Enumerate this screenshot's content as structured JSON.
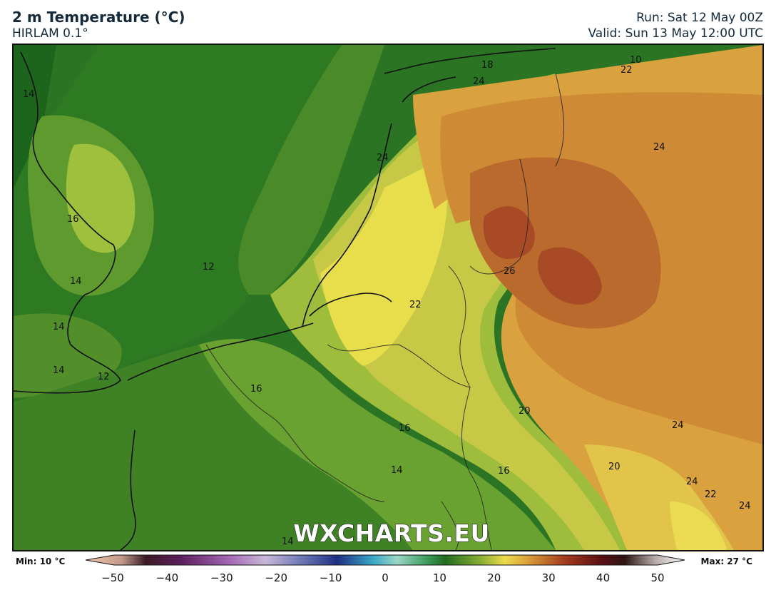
{
  "header": {
    "title": "2 m Temperature (°C)",
    "subtitle": "HIRLAM 0.1°",
    "run": "Run: Sat 12 May 00Z",
    "valid": "Valid: Sun 13 May 12:00 UTC"
  },
  "map": {
    "watermark": "WXCHARTS.EU",
    "contour_labels": [
      "14",
      "16",
      "14",
      "14",
      "14",
      "12",
      "12",
      "24",
      "18",
      "24",
      "10",
      "22",
      "24",
      "24",
      "26",
      "22",
      "16",
      "16",
      "14",
      "20",
      "16",
      "20",
      "24",
      "22",
      "24",
      "14"
    ]
  },
  "legend": {
    "min_label": "Min: 10 °C",
    "max_label": "Max: 27 °C",
    "ticks": [
      "−50",
      "−40",
      "−30",
      "−20",
      "−10",
      "0",
      "10",
      "20",
      "30",
      "40",
      "50"
    ],
    "min_value": -50,
    "max_value": 50
  },
  "colors": {
    "cool_dark_green": "#1f6a1f",
    "mid_green": "#4a8a2a",
    "light_green": "#8fb43a",
    "yellow": "#e7df4c",
    "orange": "#d28a3a",
    "hot": "#b0522a"
  }
}
